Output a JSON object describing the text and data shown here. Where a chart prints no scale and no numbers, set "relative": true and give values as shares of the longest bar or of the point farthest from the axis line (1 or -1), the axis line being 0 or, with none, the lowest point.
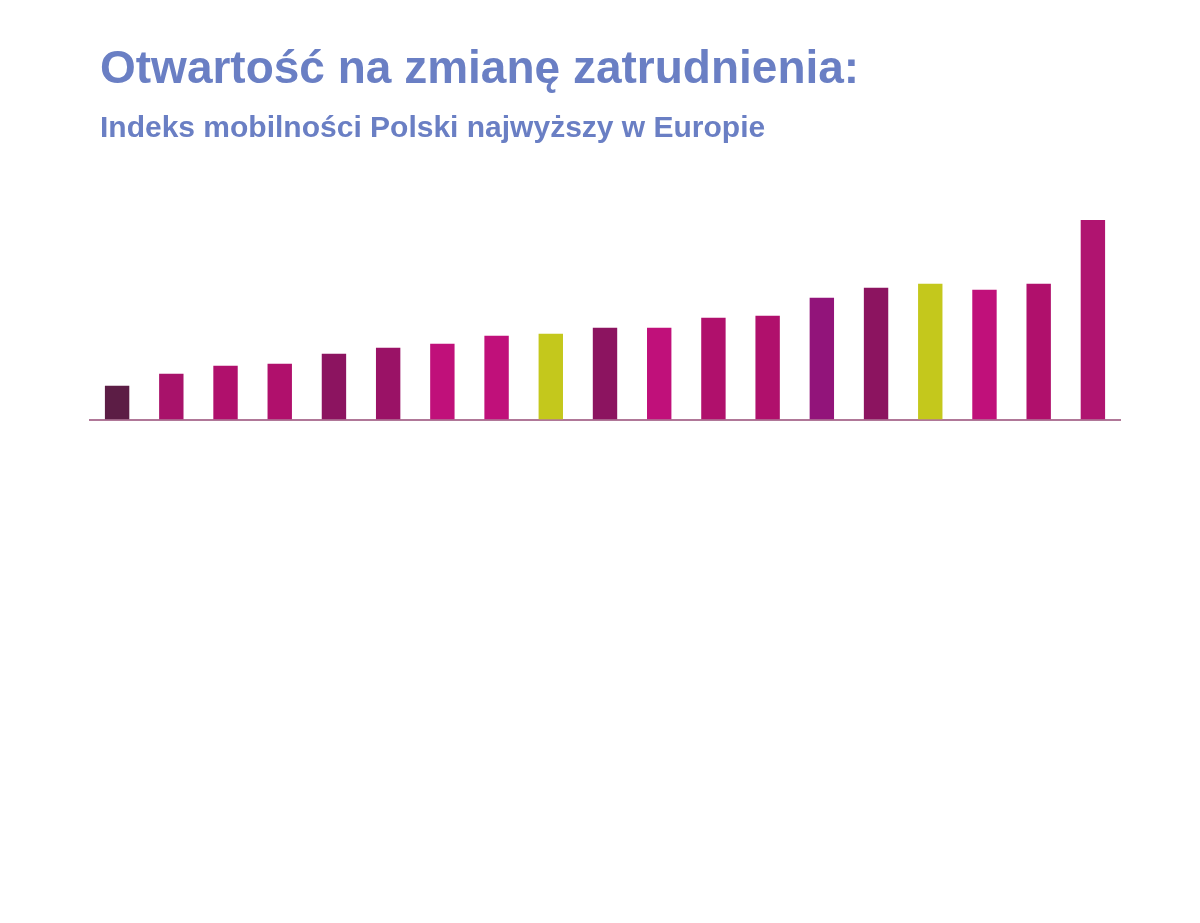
{
  "chart_data": {
    "type": "bar",
    "title": "Otwartość na zmianę zatrudnienia:",
    "subtitle": "Indeks mobilności Polski najwyższy w Europie",
    "relative": true,
    "categories": [
      null,
      null,
      null,
      null,
      null,
      null,
      null,
      null,
      null,
      null,
      null,
      null,
      null,
      null,
      null,
      null,
      null,
      null,
      null
    ],
    "values": [
      0.17,
      0.23,
      0.27,
      0.28,
      0.33,
      0.36,
      0.38,
      0.42,
      0.43,
      0.46,
      0.46,
      0.51,
      0.52,
      0.61,
      0.66,
      0.68,
      0.65,
      0.68,
      1
    ],
    "colors": [
      "#5c1d45",
      "#a8126a",
      "#b0106c",
      "#b0106c",
      "#8c1460",
      "#9a1266",
      "#c0107a",
      "#c0107a",
      "#c4c81c",
      "#8c1460",
      "#c0107a",
      "#b0106c",
      "#b0106c",
      "#92147a",
      "#8c1460",
      "#c4c81c",
      "#c0107a",
      "#b0106c",
      "#b01470"
    ]
  }
}
